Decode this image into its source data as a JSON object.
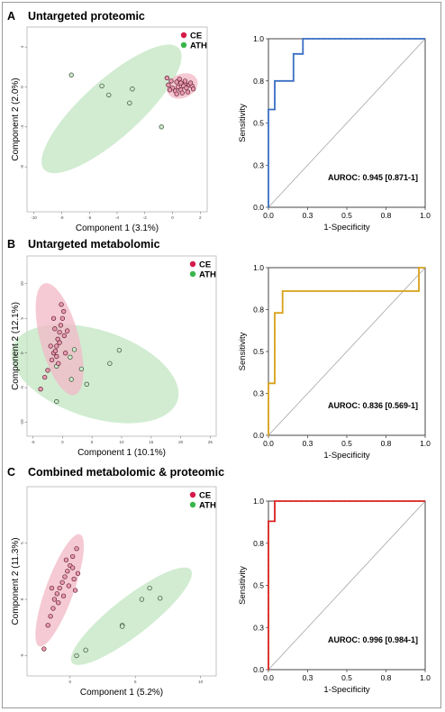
{
  "colors": {
    "ce": "#d6194b",
    "ath": "#3bb54a",
    "roc_a": "#3a6fc4",
    "roc_b": "#d8a21a",
    "roc_c": "#d9231f",
    "ce_ellipse": "#f2b8c6",
    "ath_ellipse": "#c2e6c2"
  },
  "panels": [
    {
      "letter": "A",
      "title": "Untargeted proteomic",
      "pca": {
        "xlabel": "Component 1 (3.1%)",
        "ylabel": "Component 2 (2.0%)",
        "xlim": [
          -10.5,
          2.5
        ],
        "ylim": [
          -12.5,
          6
        ],
        "xticks": [
          -10,
          -8,
          -6,
          -4,
          -2,
          0,
          2
        ],
        "yticks": [
          4,
          0,
          -4,
          -8
        ],
        "ytick_labels": [
          "4",
          "0",
          "-4",
          "-8"
        ],
        "legend": [
          {
            "label": "CE",
            "group": "ce"
          },
          {
            "label": "ATH",
            "group": "ath"
          }
        ],
        "ellipses": [
          {
            "group": "ath",
            "cx": -4.4,
            "cy": -2.2,
            "rx": 7.6,
            "ry": 2.4,
            "angle": -42
          },
          {
            "group": "ce",
            "cx": 0.7,
            "cy": 0.1,
            "rx": 1.35,
            "ry": 1.0,
            "angle": -25
          }
        ],
        "ath": [
          [
            -7.3,
            1.2
          ],
          [
            -5.1,
            0.1
          ],
          [
            -4.6,
            -0.8
          ],
          [
            -2.9,
            -0.2
          ],
          [
            -3.1,
            -1.6
          ],
          [
            -0.8,
            -4.0
          ]
        ],
        "ce": [
          [
            -0.4,
            0.9
          ],
          [
            -0.1,
            0.6
          ],
          [
            0.3,
            0.5
          ],
          [
            0.6,
            0.4
          ],
          [
            0.9,
            0.3
          ],
          [
            1.2,
            0.2
          ],
          [
            0.8,
            0.1
          ],
          [
            0.4,
            0.0
          ],
          [
            0.0,
            -0.1
          ],
          [
            1.0,
            -0.1
          ],
          [
            1.4,
            0.1
          ],
          [
            0.6,
            -0.3
          ],
          [
            0.2,
            -0.4
          ],
          [
            -0.2,
            -0.3
          ],
          [
            1.1,
            -0.5
          ],
          [
            0.7,
            -0.6
          ],
          [
            0.3,
            -0.7
          ],
          [
            1.3,
            0.4
          ],
          [
            0.9,
            0.6
          ],
          [
            0.5,
            0.8
          ],
          [
            -0.3,
            0.2
          ],
          [
            1.5,
            -0.2
          ]
        ]
      },
      "roc": {
        "color": "roc_a",
        "auroc": "AUROC: 0.945 [0.871-1]",
        "xlabel": "1-Specificity",
        "ylabel": "Sensitivity",
        "ticks": [
          "0.0",
          "0.3",
          "0.5",
          "0.8",
          "1.0"
        ],
        "tick_values": [
          0,
          0.25,
          0.5,
          0.75,
          1
        ],
        "curve": [
          [
            0,
            0
          ],
          [
            0,
            0.58
          ],
          [
            0.04,
            0.58
          ],
          [
            0.04,
            0.75
          ],
          [
            0.16,
            0.75
          ],
          [
            0.16,
            0.91
          ],
          [
            0.22,
            0.91
          ],
          [
            0.22,
            1
          ],
          [
            1,
            1
          ]
        ]
      }
    },
    {
      "letter": "B",
      "title": "Untargeted metabolomic",
      "pca": {
        "xlabel": "Component 1 (10.1%)",
        "ylabel": "Component 2 (12.1%)",
        "xlim": [
          -6,
          26
        ],
        "ylim": [
          -12,
          14
        ],
        "xticks": [
          -5,
          0,
          5,
          10,
          15,
          20,
          25
        ],
        "yticks": [
          10,
          5,
          0,
          -5,
          -10
        ],
        "ytick_labels": [
          "10",
          "5",
          "0",
          "-5",
          "-10"
        ],
        "legend": [
          {
            "label": "CE",
            "group": "ce"
          },
          {
            "label": "ATH",
            "group": "ath"
          }
        ],
        "ellipses": [
          {
            "group": "ath",
            "cx": 5.5,
            "cy": -3.0,
            "rx": 13.5,
            "ry": 6.8,
            "angle": 18
          },
          {
            "group": "ce",
            "cx": -0.5,
            "cy": 2.0,
            "rx": 9.0,
            "ry": 3.0,
            "angle": 75
          }
        ],
        "ath": [
          [
            -1.0,
            -7.0
          ],
          [
            1.3,
            -0.6
          ],
          [
            3.2,
            -2.3
          ],
          [
            4.1,
            -4.5
          ],
          [
            8.0,
            -1.5
          ],
          [
            9.6,
            0.4
          ],
          [
            2.0,
            0.5
          ],
          [
            -1.0,
            -1.9
          ],
          [
            1.5,
            -3.8
          ]
        ],
        "ce": [
          [
            -3.7,
            -5.2
          ],
          [
            -3.0,
            -3.5
          ],
          [
            -2.5,
            -2.5
          ],
          [
            -1.8,
            -1.0
          ],
          [
            -1.5,
            0.0
          ],
          [
            -1.0,
            1.0
          ],
          [
            -0.8,
            2.0
          ],
          [
            -0.5,
            3.0
          ],
          [
            -0.3,
            4.0
          ],
          [
            0.0,
            5.0
          ],
          [
            0.2,
            6.0
          ],
          [
            -0.2,
            7.0
          ],
          [
            -1.3,
            3.5
          ],
          [
            -0.5,
            1.5
          ],
          [
            0.3,
            2.5
          ],
          [
            -1.0,
            -0.5
          ],
          [
            0.5,
            0.0
          ],
          [
            -2.0,
            1.0
          ],
          [
            -1.5,
            5.0
          ],
          [
            0.8,
            3.2
          ],
          [
            -0.7,
            -1.5
          ],
          [
            -1.2,
            0.3
          ]
        ]
      },
      "roc": {
        "color": "roc_b",
        "auroc": "AUROC: 0.836 [0.569-1]",
        "xlabel": "1-Specificity",
        "ylabel": "Sensitivity",
        "ticks": [
          "0.0",
          "0.3",
          "0.5",
          "0.8",
          "1.0"
        ],
        "tick_values": [
          0,
          0.25,
          0.5,
          0.75,
          1
        ],
        "curve": [
          [
            0,
            0
          ],
          [
            0,
            0.31
          ],
          [
            0.04,
            0.31
          ],
          [
            0.04,
            0.73
          ],
          [
            0.09,
            0.73
          ],
          [
            0.09,
            0.86
          ],
          [
            0.96,
            0.86
          ],
          [
            0.96,
            1
          ],
          [
            1,
            1
          ]
        ]
      }
    },
    {
      "letter": "C",
      "title": "Combined metabolomic & proteomic",
      "pca": {
        "xlabel": "Component 1 (5.2%)",
        "ylabel": "Component 2 (11.3%)",
        "xlim": [
          -3.3,
          11.2
        ],
        "ylim": [
          -6.8,
          10
        ],
        "xticks": [
          0,
          5,
          10
        ],
        "yticks": [
          5,
          0,
          -5
        ],
        "ytick_labels": [
          "5",
          "0",
          "-5"
        ],
        "legend": [
          {
            "label": "CE",
            "group": "ce"
          },
          {
            "label": "ATH",
            "group": "ath"
          }
        ],
        "ellipses": [
          {
            "group": "ath",
            "cx": 4.7,
            "cy": -1.5,
            "rx": 6.2,
            "ry": 1.55,
            "angle": -38
          },
          {
            "group": "ce",
            "cx": -0.8,
            "cy": 0.8,
            "rx": 4.9,
            "ry": 1.15,
            "angle": -70
          }
        ],
        "ath": [
          [
            0.5,
            -5.0
          ],
          [
            1.2,
            -4.5
          ],
          [
            4.0,
            -2.3
          ],
          [
            4.0,
            -2.4
          ],
          [
            5.5,
            0.0
          ],
          [
            6.9,
            0.1
          ],
          [
            6.1,
            1.0
          ]
        ],
        "ce": [
          [
            -2.0,
            -4.4
          ],
          [
            -1.7,
            -2.3
          ],
          [
            -1.5,
            -1.5
          ],
          [
            -1.3,
            -0.8
          ],
          [
            -1.2,
            0.0
          ],
          [
            -1.0,
            0.5
          ],
          [
            -0.8,
            1.0
          ],
          [
            -0.6,
            1.5
          ],
          [
            -0.4,
            2.0
          ],
          [
            -0.2,
            2.5
          ],
          [
            0.0,
            3.0
          ],
          [
            0.2,
            3.8
          ],
          [
            0.5,
            4.5
          ],
          [
            0.3,
            1.8
          ],
          [
            -0.1,
            1.2
          ],
          [
            -0.5,
            0.3
          ],
          [
            0.4,
            0.8
          ],
          [
            -0.9,
            -0.3
          ],
          [
            0.2,
            2.8
          ],
          [
            -0.3,
            3.5
          ],
          [
            -1.4,
            1.0
          ],
          [
            0.6,
            2.3
          ]
        ]
      },
      "roc": {
        "color": "roc_c",
        "auroc": "AUROC: 0.996 [0.984-1]",
        "xlabel": "1-Specificity",
        "ylabel": "Sensitivity",
        "ticks": [
          "0.0",
          "0.3",
          "0.5",
          "0.8",
          "1.0"
        ],
        "tick_values": [
          0,
          0.25,
          0.5,
          0.75,
          1
        ],
        "curve": [
          [
            0,
            0
          ],
          [
            0,
            0.88
          ],
          [
            0.04,
            0.88
          ],
          [
            0.04,
            1
          ],
          [
            1,
            1
          ]
        ]
      }
    }
  ],
  "chart_data": [
    {
      "type": "scatter",
      "title": "Untargeted proteomic",
      "xlabel": "Component 1 (3.1%)",
      "ylabel": "Component 2 (2.0%)",
      "series": [
        {
          "name": "CE"
        },
        {
          "name": "ATH"
        }
      ]
    },
    {
      "type": "line",
      "xlabel": "1-Specificity",
      "ylabel": "Sensitivity",
      "annotation": "AUROC: 0.945 [0.871-1]",
      "xlim": [
        0,
        1
      ],
      "ylim": [
        0,
        1
      ]
    },
    {
      "type": "scatter",
      "title": "Untargeted metabolomic",
      "xlabel": "Component 1 (10.1%)",
      "ylabel": "Component 2 (12.1%)",
      "series": [
        {
          "name": "CE"
        },
        {
          "name": "ATH"
        }
      ]
    },
    {
      "type": "line",
      "xlabel": "1-Specificity",
      "ylabel": "Sensitivity",
      "annotation": "AUROC: 0.836 [0.569-1]",
      "xlim": [
        0,
        1
      ],
      "ylim": [
        0,
        1
      ]
    },
    {
      "type": "scatter",
      "title": "Combined metabolomic & proteomic",
      "xlabel": "Component 1 (5.2%)",
      "ylabel": "Component 2 (11.3%)",
      "series": [
        {
          "name": "CE"
        },
        {
          "name": "ATH"
        }
      ]
    },
    {
      "type": "line",
      "xlabel": "1-Specificity",
      "ylabel": "Sensitivity",
      "annotation": "AUROC: 0.996 [0.984-1]",
      "xlim": [
        0,
        1
      ],
      "ylim": [
        0,
        1
      ]
    }
  ]
}
